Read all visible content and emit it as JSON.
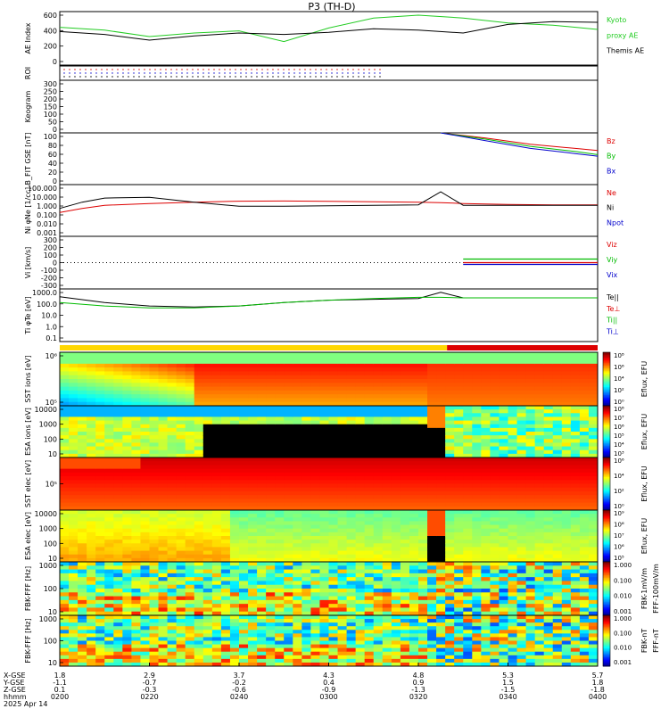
{
  "title": "P3 (TH-D)",
  "date": "2025 Apr 14",
  "colors": {
    "kyoto": "#22cc22",
    "themis": "#000000",
    "red": "#dd0000",
    "green": "#00bb00",
    "blue": "#0000cc",
    "black": "#000000"
  },
  "panels": [
    {
      "id": "ae",
      "ylabel": [
        "AE Index"
      ],
      "ticks": [
        "600",
        "400",
        "200",
        "0"
      ],
      "legend": [
        {
          "text": "Kyoto",
          "color": "#22cc22"
        },
        {
          "text": "proxy AE",
          "color": "#22cc22"
        },
        {
          "text": "Themis AE",
          "color": "#000000"
        }
      ]
    },
    {
      "id": "roi",
      "ylabel": [
        "ROI"
      ],
      "ticks": [],
      "legend": []
    },
    {
      "id": "keogram",
      "ylabel": [
        "Keogram"
      ],
      "ticks": [
        "300",
        "250",
        "200",
        "150",
        "100",
        "50",
        "0"
      ],
      "legend": []
    },
    {
      "id": "bfit",
      "ylabel": [
        "B_FIT",
        "GSE",
        "[nT]"
      ],
      "ticks": [
        "100",
        "80",
        "60",
        "40",
        "20",
        "0"
      ],
      "legend": [
        {
          "text": "Bz",
          "color": "#dd0000"
        },
        {
          "text": "By",
          "color": "#00bb00"
        },
        {
          "text": "Bx",
          "color": "#0000cc"
        }
      ]
    },
    {
      "id": "ni",
      "ylabel": [
        "Ni",
        "φNe",
        "[1/cc]"
      ],
      "ticks": [
        "100.000",
        "10.000",
        "1.000",
        "0.100",
        "0.010",
        "0.001"
      ],
      "legend": [
        {
          "text": "Ne",
          "color": "#dd0000"
        },
        {
          "text": "Ni",
          "color": "#000000"
        },
        {
          "text": "Npot",
          "color": "#0000cc"
        }
      ]
    },
    {
      "id": "vi",
      "ylabel": [
        "Vi",
        "[km/s]"
      ],
      "ticks": [
        "300",
        "200",
        "100",
        "0",
        "-100",
        "-200",
        "-300"
      ],
      "legend": [
        {
          "text": "Viz",
          "color": "#dd0000"
        },
        {
          "text": "Viy",
          "color": "#00bb00"
        },
        {
          "text": "Vix",
          "color": "#0000cc"
        }
      ]
    },
    {
      "id": "ti",
      "ylabel": [
        "Ti",
        "φTe",
        "[eV]"
      ],
      "ticks": [
        "1000.0",
        "100.0",
        "10.0",
        "1.0",
        "0.1"
      ],
      "legend": [
        {
          "text": "Te||",
          "color": "#000000"
        },
        {
          "text": "Te⊥",
          "color": "#dd0000"
        },
        {
          "text": "Ti||",
          "color": "#00bb00"
        },
        {
          "text": "Ti⊥",
          "color": "#0000cc"
        }
      ]
    },
    {
      "id": "sst_i",
      "ylabel": [
        "SST",
        "ions",
        "[eV]"
      ],
      "ticks": [
        "10⁶",
        "10⁵"
      ],
      "cbar": "Eflux, EFU",
      "cbticks": [
        "10⁸",
        "10⁶",
        "10⁴",
        "10²",
        "10⁰"
      ]
    },
    {
      "id": "esa_i",
      "ylabel": [
        "ESA",
        "ions",
        "[eV]"
      ],
      "ticks": [
        "10000",
        "1000",
        "100",
        "10"
      ],
      "cbar": "Eflux, EFU",
      "cbticks": [
        "10⁸",
        "10⁷",
        "10⁶",
        "10⁵",
        "10⁴",
        "10³"
      ]
    },
    {
      "id": "sst_e",
      "ylabel": [
        "SST",
        "elec",
        "[eV]"
      ],
      "ticks": [
        "10⁵"
      ],
      "cbar": "Eflux, EFU",
      "cbticks": [
        "10⁶",
        "10⁴",
        "10²",
        "10⁰"
      ]
    },
    {
      "id": "esa_e",
      "ylabel": [
        "ESA",
        "elec",
        "[eV]"
      ],
      "ticks": [
        "10000",
        "1000",
        "100",
        "10"
      ],
      "cbar": "Eflux, EFU",
      "cbticks": [
        "10⁹",
        "10⁸",
        "10⁷",
        "10⁶",
        "10⁵"
      ]
    },
    {
      "id": "fbk_e",
      "ylabel": [
        "FBK-FFF",
        "[Hz]"
      ],
      "ticks": [
        "1000",
        "100",
        "10"
      ],
      "cbar": "FBK-1mV/m",
      "cbar2": "FFF-100mV/m",
      "cbticks": [
        "1.000",
        "0.100",
        "0.010",
        "0.001"
      ]
    },
    {
      "id": "fbk_b",
      "ylabel": [
        "FBK-FFF",
        "[Hz]"
      ],
      "ticks": [
        "1000",
        "100",
        "10"
      ],
      "cbar": "FBK-nT",
      "cbar2": "FFF-nT",
      "cbticks": [
        "1.000",
        "0.100",
        "0.010",
        "0.001"
      ]
    }
  ],
  "xaxis": {
    "rowlabels": [
      "X-GSE",
      "Y-GSE",
      "Z-GSE",
      "hhmm",
      "2025 Apr 14"
    ],
    "ticks": [
      {
        "x": "1.8",
        "y": "-1.1",
        "z": "0.1",
        "t": "0200"
      },
      {
        "x": "2.9",
        "y": "-0.7",
        "z": "-0.3",
        "t": "0220"
      },
      {
        "x": "3.7",
        "y": "-0.2",
        "z": "-0.6",
        "t": "0240"
      },
      {
        "x": "4.3",
        "y": "0.4",
        "z": "-0.9",
        "t": "0300"
      },
      {
        "x": "4.8",
        "y": "0.9",
        "z": "-1.3",
        "t": "0320"
      },
      {
        "x": "5.3",
        "y": "1.5",
        "z": "-1.5",
        "t": "0340"
      },
      {
        "x": "5.7",
        "y": "1.8",
        "z": "-1.8",
        "t": "0400"
      }
    ]
  },
  "chart_data": [
    {
      "type": "line",
      "name": "AE index",
      "x": [
        0,
        10,
        20,
        30,
        40,
        50,
        60,
        70,
        80,
        90,
        100,
        110,
        120
      ],
      "series": [
        {
          "name": "Kyoto proxy AE",
          "values": [
            430,
            390,
            300,
            350,
            380,
            230,
            420,
            560,
            600,
            560,
            490,
            460,
            400
          ]
        },
        {
          "name": "Themis AE",
          "values": [
            370,
            330,
            250,
            310,
            350,
            330,
            360,
            410,
            390,
            350,
            470,
            510,
            500
          ]
        }
      ],
      "ylim": [
        -100,
        650
      ]
    },
    {
      "type": "line",
      "name": "B_FIT",
      "x": [
        85,
        95,
        105,
        115,
        120
      ],
      "series": [
        {
          "name": "Bz",
          "values": [
            100,
            90,
            78,
            70,
            66
          ]
        },
        {
          "name": "By",
          "values": [
            100,
            88,
            74,
            64,
            58
          ]
        },
        {
          "name": "Bx",
          "values": [
            100,
            85,
            70,
            60,
            55
          ]
        }
      ],
      "ylim": [
        0,
        100
      ]
    },
    {
      "type": "line",
      "name": "Ni",
      "x": [
        0,
        5,
        10,
        20,
        30,
        40,
        50,
        60,
        70,
        80,
        85,
        90,
        100,
        110,
        120
      ],
      "series": [
        {
          "name": "Ne",
          "values": [
            0.2,
            0.5,
            1.0,
            1.5,
            2,
            2.5,
            2.6,
            2.4,
            2.2,
            2,
            1.8,
            1.5,
            1.2,
            1.1,
            1.1
          ]
        },
        {
          "name": "Ni",
          "values": [
            0.5,
            2,
            5,
            6,
            2,
            0.8,
            0.8,
            0.9,
            1.0,
            1.1,
            20,
            1.0,
            1.0,
            1.0,
            1.0
          ]
        }
      ],
      "ylim": [
        0.001,
        100
      ]
    },
    {
      "type": "line",
      "name": "Ti",
      "x": [
        0,
        10,
        20,
        30,
        40,
        50,
        60,
        70,
        80,
        85,
        90,
        100,
        110,
        120
      ],
      "series": [
        {
          "name": "Te||",
          "values": [
            1000,
            300,
            150,
            120,
            150,
            300,
            500,
            600,
            700,
            2500,
            800,
            800,
            800,
            800
          ]
        },
        {
          "name": "Ti||",
          "values": [
            300,
            150,
            100,
            100,
            150,
            300,
            500,
            700,
            900,
            900,
            800,
            800,
            800,
            800
          ]
        }
      ],
      "ylim": [
        0.1,
        5000
      ]
    }
  ]
}
